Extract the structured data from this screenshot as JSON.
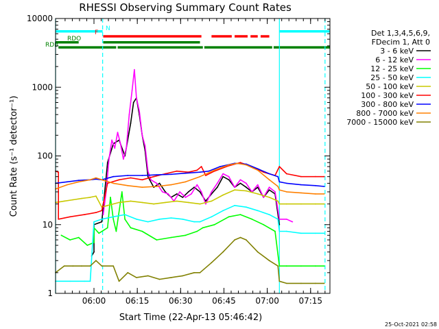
{
  "chart_data": {
    "type": "line",
    "title": "RHESSI Observing Summary Count Rates",
    "xlabel": "Start Time (22-Apr-13 05:46:42)",
    "ylabel": "Count Rate (s⁻¹ detector⁻¹)",
    "ylog": true,
    "ylim": [
      1,
      10000
    ],
    "xlim_minutes_from_start": [
      0,
      95
    ],
    "x_ticks": [
      {
        "label": "06:00",
        "t": 13.3
      },
      {
        "label": "06:15",
        "t": 28.3
      },
      {
        "label": "06:30",
        "t": 43.3
      },
      {
        "label": "06:45",
        "t": 58.3
      },
      {
        "label": "07:00",
        "t": 73.3
      },
      {
        "label": "07:15",
        "t": 88.3
      }
    ],
    "y_ticks": [
      {
        "label": "1",
        "v": 1
      },
      {
        "label": "10",
        "v": 10
      },
      {
        "label": "100",
        "v": 100
      },
      {
        "label": "1000",
        "v": 1000
      },
      {
        "label": "10000",
        "v": 10000
      }
    ],
    "legend_header": [
      "Det 1,3,4,5,6,9,",
      "FDecim 1, Att 0"
    ],
    "legend_placement": "right",
    "timestamp": "25-Oct-2021 02:58",
    "flags": [
      {
        "label": "N",
        "color": "#00ffff",
        "y": 6500,
        "segments": [
          [
            0,
            16.3
          ],
          [
            77.5,
            95
          ]
        ]
      },
      {
        "label": "F",
        "color": "#ff0000",
        "y": 5500,
        "segments": [
          [
            16.5,
            50.5
          ],
          [
            54,
            61
          ],
          [
            62,
            66.5
          ],
          [
            67.5,
            70
          ],
          [
            71,
            74
          ]
        ]
      },
      {
        "label": "RDO",
        "color": "#008000",
        "y": 4500,
        "segments": [
          [
            0,
            8
          ],
          [
            16.5,
            50
          ]
        ]
      },
      {
        "label": "RDB",
        "color": "#008000",
        "y": 3800,
        "segments": [
          [
            1,
            21
          ],
          [
            21.5,
            51
          ],
          [
            51.5,
            75
          ],
          [
            75.5,
            95
          ]
        ]
      }
    ],
    "vlines": [
      {
        "t": 0,
        "color": "#00ffff",
        "style": "solid"
      },
      {
        "t": 16.3,
        "color": "#00ffff",
        "style": "dashed"
      },
      {
        "t": 77.5,
        "color": "#00ffff",
        "style": "solid"
      },
      {
        "t": 93.3,
        "color": "#00ffff",
        "style": "dashed"
      }
    ],
    "series": [
      {
        "name": "3 - 6 keV",
        "color": "#000000",
        "points": [
          [
            12.5,
            3.5
          ],
          [
            13.3,
            4
          ],
          [
            13.3,
            10
          ],
          [
            16,
            11
          ],
          [
            18,
            80
          ],
          [
            20,
            150
          ],
          [
            22,
            170
          ],
          [
            24,
            100
          ],
          [
            26,
            300
          ],
          [
            27,
            600
          ],
          [
            28,
            700
          ],
          [
            29,
            400
          ],
          [
            30,
            200
          ],
          [
            31,
            120
          ],
          [
            32,
            50
          ],
          [
            34,
            35
          ],
          [
            36,
            40
          ],
          [
            38,
            30
          ],
          [
            40,
            25
          ],
          [
            42,
            28
          ],
          [
            44,
            25
          ],
          [
            46,
            30
          ],
          [
            48,
            35
          ],
          [
            50,
            30
          ],
          [
            52,
            22
          ],
          [
            54,
            28
          ],
          [
            56,
            35
          ],
          [
            58,
            50
          ],
          [
            60,
            45
          ],
          [
            62,
            35
          ],
          [
            64,
            40
          ],
          [
            66,
            35
          ],
          [
            68,
            30
          ],
          [
            70,
            35
          ],
          [
            72,
            25
          ],
          [
            74,
            32
          ],
          [
            76,
            28
          ],
          [
            77.5,
            10
          ]
        ]
      },
      {
        "name": "6 - 12 keV",
        "color": "#ff00ff",
        "points": [
          [
            16.5,
            14
          ],
          [
            17.5,
            30
          ],
          [
            18.5,
            90
          ],
          [
            19.5,
            170
          ],
          [
            20.5,
            130
          ],
          [
            21.5,
            220
          ],
          [
            22.5,
            150
          ],
          [
            23.5,
            90
          ],
          [
            24.5,
            130
          ],
          [
            25.5,
            400
          ],
          [
            26.5,
            900
          ],
          [
            27.3,
            1800
          ],
          [
            28,
            700
          ],
          [
            29,
            450
          ],
          [
            30,
            200
          ],
          [
            31,
            140
          ],
          [
            32,
            60
          ],
          [
            33,
            45
          ],
          [
            35,
            40
          ],
          [
            37,
            30
          ],
          [
            39,
            28
          ],
          [
            41,
            22
          ],
          [
            43,
            30
          ],
          [
            45,
            25
          ],
          [
            47,
            28
          ],
          [
            49,
            38
          ],
          [
            50.5,
            30
          ],
          [
            52,
            20
          ],
          [
            54,
            30
          ],
          [
            56,
            40
          ],
          [
            58,
            55
          ],
          [
            60,
            50
          ],
          [
            62,
            35
          ],
          [
            64,
            45
          ],
          [
            66,
            40
          ],
          [
            68,
            30
          ],
          [
            70,
            38
          ],
          [
            72,
            25
          ],
          [
            74,
            35
          ],
          [
            76,
            30
          ],
          [
            77.5,
            12
          ],
          [
            80,
            12
          ],
          [
            82,
            11
          ]
        ]
      },
      {
        "name": "12 - 25 keV",
        "color": "#00ff00",
        "points": [
          [
            2,
            7
          ],
          [
            5,
            6
          ],
          [
            8,
            6.5
          ],
          [
            11,
            5
          ],
          [
            13.3,
            5.5
          ],
          [
            13.3,
            9
          ],
          [
            15,
            7.5
          ],
          [
            18,
            9
          ],
          [
            19,
            25
          ],
          [
            20,
            12
          ],
          [
            21,
            8
          ],
          [
            23,
            30
          ],
          [
            24,
            12
          ],
          [
            26,
            9
          ],
          [
            30,
            8
          ],
          [
            35,
            6
          ],
          [
            40,
            6.5
          ],
          [
            45,
            7
          ],
          [
            49,
            8
          ],
          [
            51,
            9
          ],
          [
            55,
            10
          ],
          [
            60,
            13
          ],
          [
            64,
            14
          ],
          [
            68,
            12
          ],
          [
            72,
            10
          ],
          [
            76,
            8
          ],
          [
            77.5,
            2.5
          ],
          [
            80,
            2.5
          ],
          [
            85,
            2.5
          ],
          [
            90,
            2.5
          ],
          [
            93,
            2.5
          ]
        ]
      },
      {
        "name": "25 - 50 keV",
        "color": "#00ffff",
        "points": [
          [
            0,
            1.5
          ],
          [
            5,
            1.5
          ],
          [
            10,
            1.5
          ],
          [
            12,
            1.5
          ],
          [
            13.3,
            11
          ],
          [
            16,
            12
          ],
          [
            20,
            13
          ],
          [
            24,
            14
          ],
          [
            28,
            12
          ],
          [
            32,
            11
          ],
          [
            36,
            12
          ],
          [
            40,
            12.5
          ],
          [
            44,
            12
          ],
          [
            48,
            11
          ],
          [
            50,
            11
          ],
          [
            54,
            13
          ],
          [
            58,
            16
          ],
          [
            62,
            19
          ],
          [
            66,
            18
          ],
          [
            70,
            16
          ],
          [
            74,
            14
          ],
          [
            77,
            12
          ],
          [
            77.5,
            8
          ],
          [
            80,
            8
          ],
          [
            85,
            7.5
          ],
          [
            90,
            7.5
          ],
          [
            93,
            7.5
          ]
        ]
      },
      {
        "name": "50 - 100 keV",
        "color": "#c8c800",
        "points": [
          [
            0,
            21
          ],
          [
            3,
            22
          ],
          [
            6,
            23
          ],
          [
            9,
            24
          ],
          [
            12,
            25
          ],
          [
            14,
            26
          ],
          [
            16,
            18
          ],
          [
            18,
            19
          ],
          [
            22,
            21
          ],
          [
            26,
            22
          ],
          [
            30,
            21
          ],
          [
            34,
            20
          ],
          [
            38,
            21
          ],
          [
            42,
            22
          ],
          [
            46,
            21
          ],
          [
            50,
            20
          ],
          [
            54,
            22
          ],
          [
            58,
            27
          ],
          [
            62,
            32
          ],
          [
            66,
            31
          ],
          [
            70,
            28
          ],
          [
            74,
            25
          ],
          [
            77,
            22
          ],
          [
            77.5,
            20
          ],
          [
            80,
            20
          ],
          [
            85,
            20
          ],
          [
            90,
            20
          ],
          [
            93,
            20
          ]
        ]
      },
      {
        "name": "100 - 300 keV",
        "color": "#ff0000",
        "points": [
          [
            0,
            60
          ],
          [
            1,
            58
          ],
          [
            1,
            12
          ],
          [
            5,
            13
          ],
          [
            10,
            14
          ],
          [
            14,
            15
          ],
          [
            16,
            16
          ],
          [
            18,
            40
          ],
          [
            22,
            45
          ],
          [
            26,
            48
          ],
          [
            30,
            45
          ],
          [
            34,
            50
          ],
          [
            38,
            55
          ],
          [
            42,
            60
          ],
          [
            46,
            58
          ],
          [
            49,
            62
          ],
          [
            50.5,
            70
          ],
          [
            52,
            52
          ],
          [
            55,
            60
          ],
          [
            60,
            72
          ],
          [
            64,
            80
          ],
          [
            68,
            70
          ],
          [
            72,
            58
          ],
          [
            76,
            52
          ],
          [
            77.5,
            70
          ],
          [
            80,
            55
          ],
          [
            85,
            50
          ],
          [
            90,
            50
          ],
          [
            93,
            50
          ]
        ]
      },
      {
        "name": "300 - 800 keV",
        "color": "#0000ff",
        "points": [
          [
            0,
            40
          ],
          [
            4,
            42
          ],
          [
            8,
            44
          ],
          [
            12,
            45
          ],
          [
            14,
            46
          ],
          [
            16,
            45
          ],
          [
            20,
            50
          ],
          [
            25,
            52
          ],
          [
            30,
            52
          ],
          [
            35,
            53
          ],
          [
            40,
            54
          ],
          [
            45,
            56
          ],
          [
            50,
            58
          ],
          [
            53,
            60
          ],
          [
            57,
            70
          ],
          [
            62,
            78
          ],
          [
            66,
            76
          ],
          [
            70,
            65
          ],
          [
            74,
            55
          ],
          [
            77,
            50
          ],
          [
            77.5,
            42
          ],
          [
            80,
            40
          ],
          [
            85,
            38
          ],
          [
            90,
            37
          ],
          [
            93,
            36
          ]
        ]
      },
      {
        "name": "800 - 7000 keV",
        "color": "#ff8000",
        "points": [
          [
            0,
            33
          ],
          [
            4,
            38
          ],
          [
            8,
            42
          ],
          [
            12,
            45
          ],
          [
            14,
            48
          ],
          [
            16,
            45
          ],
          [
            20,
            40
          ],
          [
            25,
            37
          ],
          [
            30,
            35
          ],
          [
            35,
            36
          ],
          [
            40,
            38
          ],
          [
            45,
            42
          ],
          [
            50,
            50
          ],
          [
            55,
            62
          ],
          [
            60,
            74
          ],
          [
            63,
            78
          ],
          [
            66,
            74
          ],
          [
            70,
            62
          ],
          [
            74,
            45
          ],
          [
            77,
            36
          ],
          [
            77.5,
            32
          ],
          [
            80,
            30
          ],
          [
            85,
            29
          ],
          [
            90,
            28
          ],
          [
            93,
            28
          ]
        ]
      },
      {
        "name": "7000 - 15000 keV",
        "color": "#808000",
        "points": [
          [
            0,
            2
          ],
          [
            3,
            2.5
          ],
          [
            6,
            2.5
          ],
          [
            9,
            2.5
          ],
          [
            12,
            2.5
          ],
          [
            14,
            3
          ],
          [
            16,
            2.5
          ],
          [
            20,
            2.5
          ],
          [
            22,
            1.5
          ],
          [
            25,
            2
          ],
          [
            28,
            1.7
          ],
          [
            32,
            1.8
          ],
          [
            36,
            1.6
          ],
          [
            40,
            1.7
          ],
          [
            44,
            1.8
          ],
          [
            48,
            2
          ],
          [
            50,
            2
          ],
          [
            54,
            2.8
          ],
          [
            58,
            4
          ],
          [
            62,
            6
          ],
          [
            64,
            6.5
          ],
          [
            66,
            6
          ],
          [
            70,
            4
          ],
          [
            74,
            3
          ],
          [
            77,
            2.5
          ],
          [
            77.5,
            1.5
          ],
          [
            80,
            1.4
          ],
          [
            85,
            1.4
          ],
          [
            90,
            1.4
          ],
          [
            93,
            1.4
          ]
        ]
      }
    ]
  }
}
